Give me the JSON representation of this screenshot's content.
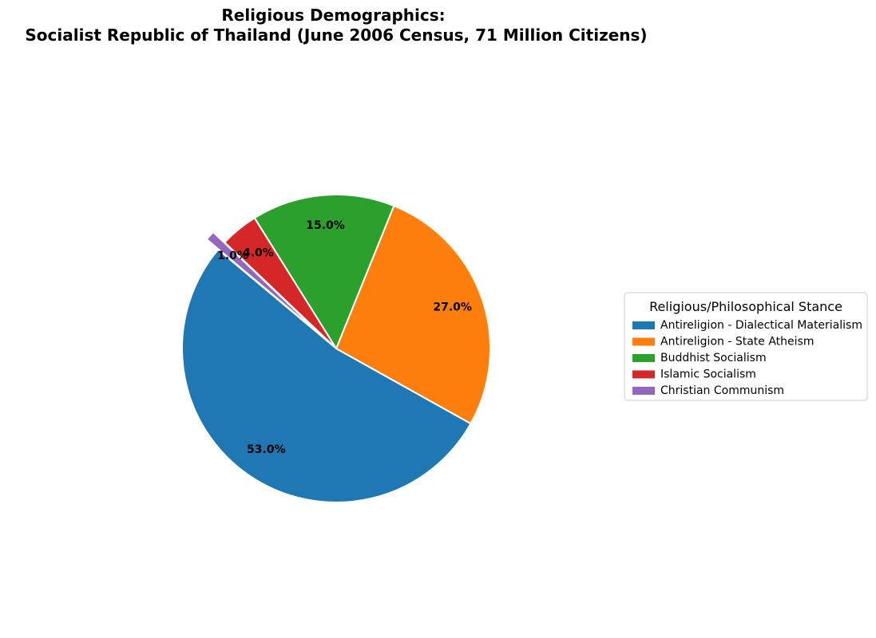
{
  "chart_data": {
    "type": "pie",
    "title": "Religious Demographics:\nSocialist Republic of Thailand (June 2006 Census, 71 Million Citizens)",
    "start_angle_deg": 140,
    "direction": "counterclockwise",
    "legend_title": "Religious/Philosophical Stance",
    "legend_placement": "right",
    "slices": [
      {
        "label": "Antireligion - Dialectical Materialism",
        "value": 53.0,
        "pct_label": "53.0%",
        "color": "#1f77b4",
        "exploded": false
      },
      {
        "label": "Antireligion - State Atheism",
        "value": 27.0,
        "pct_label": "27.0%",
        "color": "#ff7f0e",
        "exploded": false
      },
      {
        "label": "Buddhist Socialism",
        "value": 15.0,
        "pct_label": "15.0%",
        "color": "#2ca02c",
        "exploded": false
      },
      {
        "label": "Islamic Socialism",
        "value": 4.0,
        "pct_label": "4.0%",
        "color": "#d62728",
        "exploded": false
      },
      {
        "label": "Christian Communism",
        "value": 1.0,
        "pct_label": "1.0%",
        "color": "#9467bd",
        "exploded": true
      }
    ]
  }
}
